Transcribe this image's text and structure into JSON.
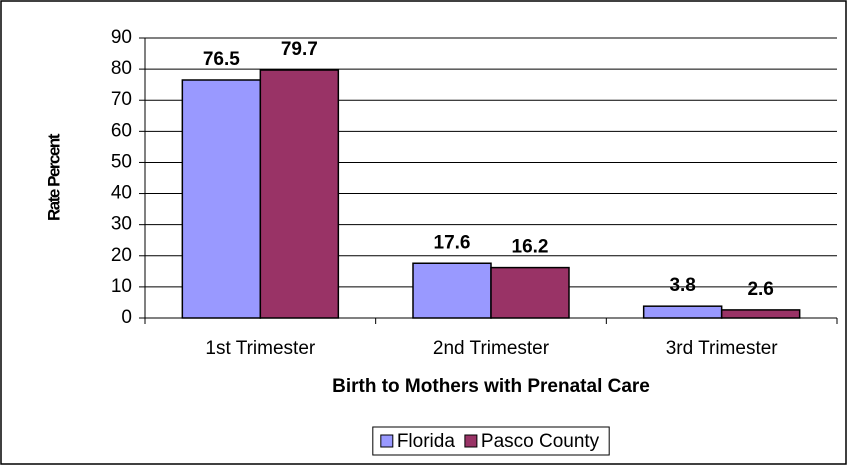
{
  "chart_data": {
    "type": "bar",
    "x_label": "Birth to Mothers with Prenatal Care",
    "y_label": "Rate Percent",
    "categories": [
      "1st Trimester",
      "2nd Trimester",
      "3rd Trimester"
    ],
    "series": [
      {
        "name": "Florida",
        "color": "#9999ff",
        "values": [
          76.5,
          17.6,
          3.8
        ]
      },
      {
        "name": "Pasco County",
        "color": "#993366",
        "values": [
          79.7,
          16.2,
          2.6
        ]
      }
    ],
    "ylim": [
      0,
      90
    ],
    "yticks": [
      0,
      10,
      20,
      30,
      40,
      50,
      60,
      70,
      80,
      90
    ],
    "grid": true,
    "legend": "bottom"
  }
}
